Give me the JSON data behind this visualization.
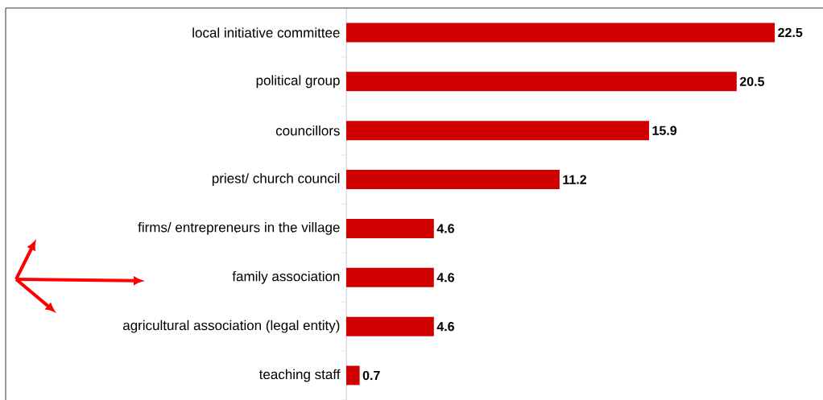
{
  "chart_data": {
    "type": "bar",
    "orientation": "horizontal",
    "categories": [
      "local initiative committee",
      "political group",
      "councillors",
      "priest/ church council",
      "firms/ entrepreneurs in the village",
      "family association",
      "agricultural association (legal entity)",
      "teaching staff"
    ],
    "values": [
      22.5,
      20.5,
      15.9,
      11.2,
      4.6,
      4.6,
      4.6,
      0.7
    ],
    "value_labels": [
      "22.5",
      "20.5",
      "15.9",
      "11.2",
      "4.6",
      "4.6",
      "4.6",
      "0.7"
    ],
    "color": "#d00000",
    "data_labels": true
  }
}
